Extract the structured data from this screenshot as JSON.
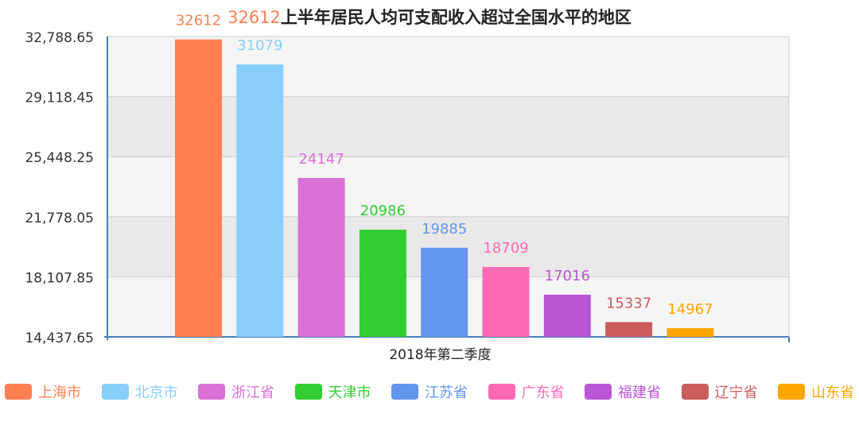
{
  "chart_data": {
    "type": "bar",
    "title_prefix": "32612",
    "title": "上半年居民人均可支配收入超过全国水平的地区",
    "xlabel": "2018年第二季度",
    "ylabel": "",
    "ylim": [
      14437.65,
      32788.65
    ],
    "yticks": [
      "14,437.65",
      "18,107.85",
      "21,778.05",
      "25,448.25",
      "29,118.45",
      "32,788.65"
    ],
    "grid": true,
    "legend_position": "bottom",
    "series": [
      {
        "name": "上海市",
        "value": 32612,
        "label": "32612",
        "color": "#ff7f50"
      },
      {
        "name": "北京市",
        "value": 31079,
        "label": "31079",
        "color": "#87cefa"
      },
      {
        "name": "浙江省",
        "value": 24147,
        "label": "24147",
        "color": "#da70d6"
      },
      {
        "name": "天津市",
        "value": 20986,
        "label": "20986",
        "color": "#32cd32"
      },
      {
        "name": "江苏省",
        "value": 19885,
        "label": "19885",
        "color": "#6495ed"
      },
      {
        "name": "广东省",
        "value": 18709,
        "label": "18709",
        "color": "#ff69b4"
      },
      {
        "name": "福建省",
        "value": 17016,
        "label": "17016",
        "color": "#ba55d3"
      },
      {
        "name": "辽宁省",
        "value": 15337,
        "label": "15337",
        "color": "#cd5c5c"
      },
      {
        "name": "山东省",
        "value": 14967,
        "label": "14967",
        "color": "#ffa500"
      }
    ]
  }
}
